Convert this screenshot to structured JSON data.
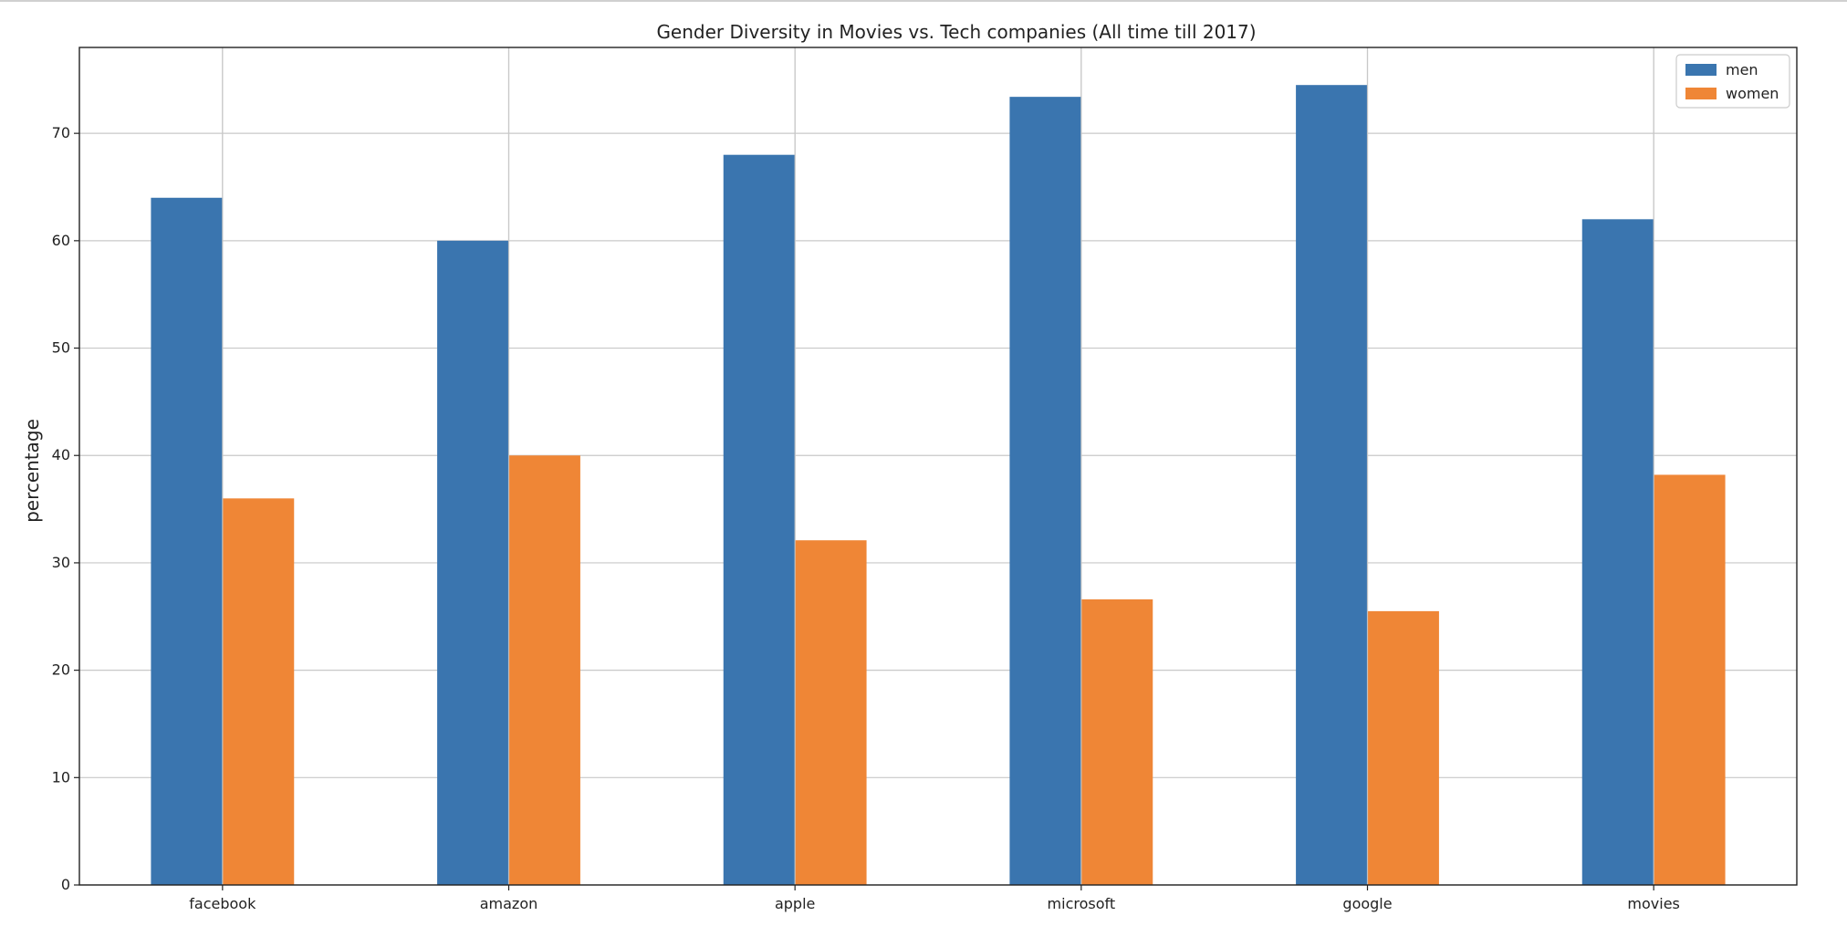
{
  "chart_data": {
    "type": "bar",
    "title": "Gender Diversity in Movies vs. Tech companies (All time till 2017)",
    "xlabel": "",
    "ylabel": "percentage",
    "categories": [
      "facebook",
      "amazon",
      "apple",
      "microsoft",
      "google",
      "movies"
    ],
    "series": [
      {
        "name": "men",
        "values": [
          64,
          60,
          68,
          73.4,
          74.5,
          62
        ],
        "color": "#3a75af"
      },
      {
        "name": "women",
        "values": [
          36,
          40,
          32.1,
          26.6,
          25.5,
          38.2
        ],
        "color": "#ef8636"
      }
    ],
    "ylim": [
      0,
      78
    ],
    "yticks": [
      0,
      10,
      20,
      30,
      40,
      50,
      60,
      70
    ],
    "grid": true,
    "legend_position": "top-right"
  }
}
